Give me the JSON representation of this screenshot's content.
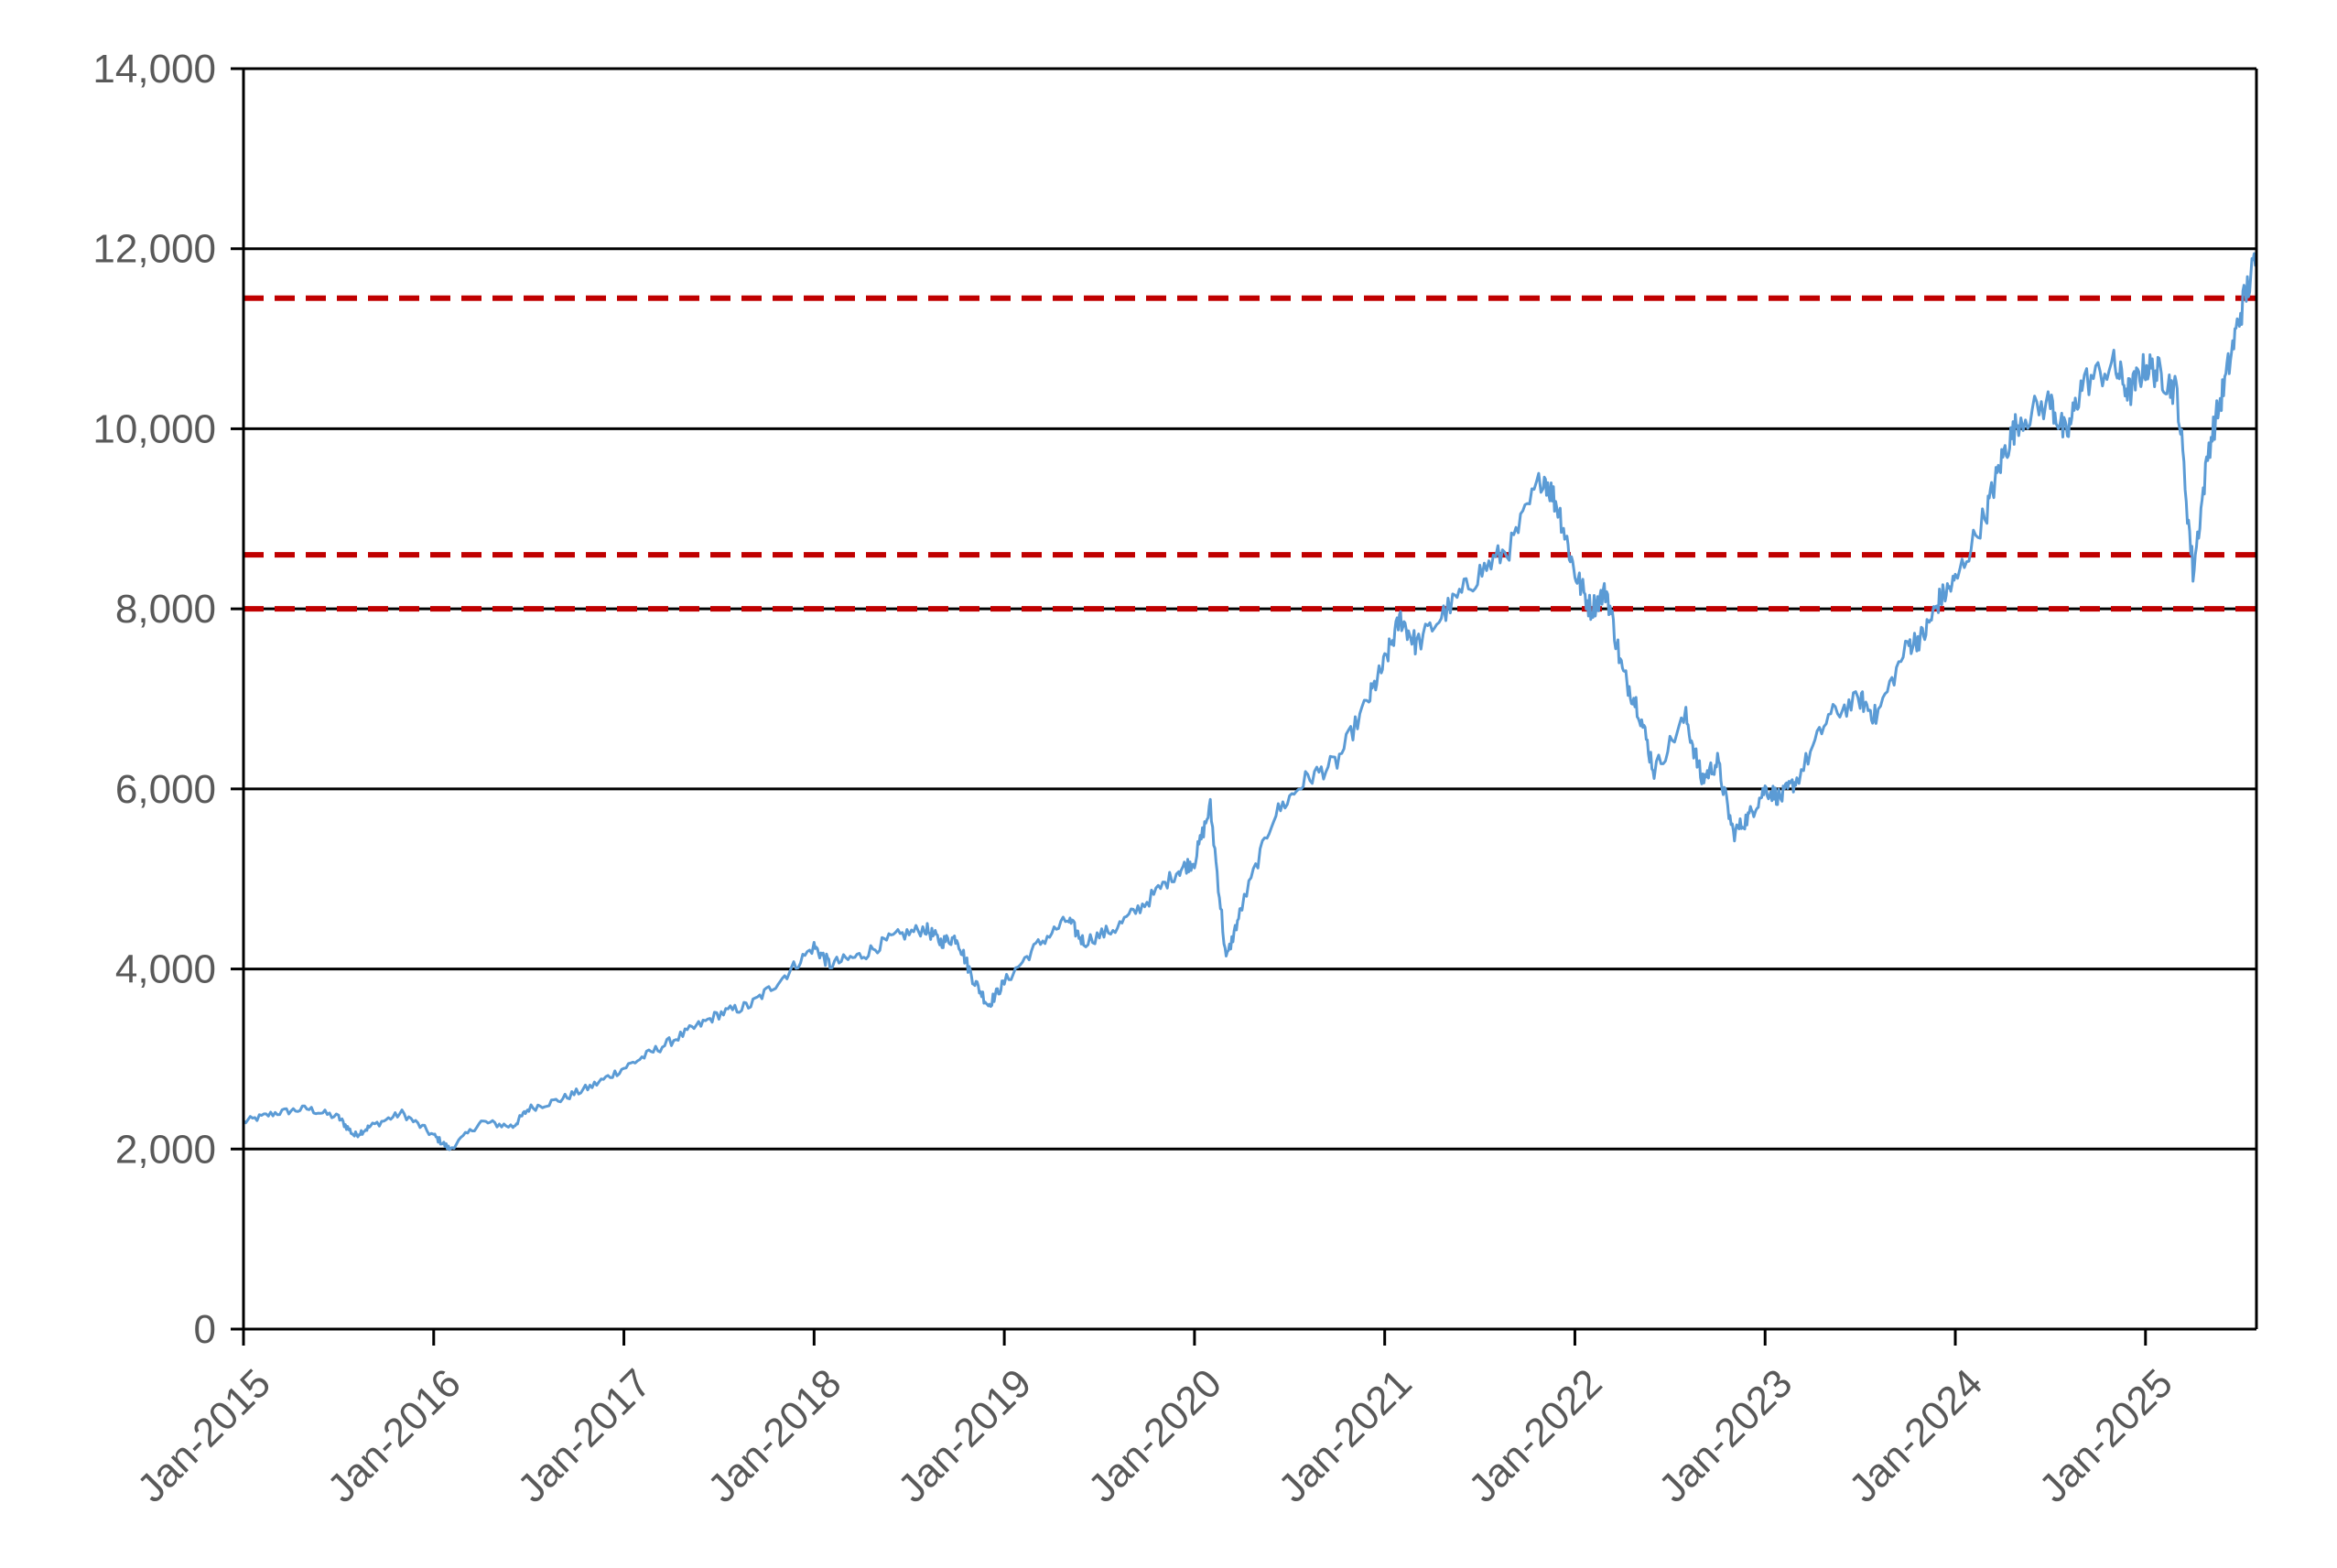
{
  "chart_data": {
    "type": "line",
    "title": "",
    "xlabel": "",
    "ylabel": "",
    "ylim": [
      0,
      14000
    ],
    "xlim": [
      "2015-01",
      "2025-08"
    ],
    "y_ticks": [
      0,
      2000,
      4000,
      6000,
      8000,
      10000,
      12000,
      14000
    ],
    "y_tick_labels": [
      "0",
      "2,000",
      "4,000",
      "6,000",
      "8,000",
      "10,000",
      "12,000",
      "14,000"
    ],
    "x_ticks": [
      "2015-01",
      "2016-01",
      "2017-01",
      "2018-01",
      "2019-01",
      "2020-01",
      "2021-01",
      "2022-01",
      "2023-01",
      "2024-01",
      "2025-01"
    ],
    "x_tick_labels": [
      "Jan-2015",
      "Jan-2016",
      "Jan-2017",
      "Jan-2018",
      "Jan-2019",
      "Jan-2020",
      "Jan-2021",
      "Jan-2022",
      "Jan-2023",
      "Jan-2024",
      "Jan-2025"
    ],
    "grid": "horizontal",
    "legend": "none",
    "series": [
      {
        "color": "#5b9bd5",
        "x": [
          "2015-01",
          "2015-03",
          "2015-05",
          "2015-07",
          "2015-08",
          "2015-09",
          "2015-11",
          "2016-01",
          "2016-02",
          "2016-04",
          "2016-06",
          "2016-07",
          "2016-09",
          "2016-11",
          "2017-01",
          "2017-03",
          "2017-05",
          "2017-07",
          "2017-09",
          "2017-11",
          "2018-01",
          "2018-02",
          "2018-04",
          "2018-06",
          "2018-08",
          "2018-09",
          "2018-10",
          "2018-11",
          "2018-12",
          "2019-01",
          "2019-03",
          "2019-05",
          "2019-06",
          "2019-08",
          "2019-10",
          "2019-12",
          "2020-01",
          "2020-02",
          "2020-03",
          "2020-04",
          "2020-06",
          "2020-08",
          "2020-10",
          "2020-12",
          "2021-01",
          "2021-02",
          "2021-03",
          "2021-05",
          "2021-07",
          "2021-09",
          "2021-11",
          "2021-12",
          "2022-01",
          "2022-02",
          "2022-03",
          "2022-04",
          "2022-05",
          "2022-06",
          "2022-08",
          "2022-09",
          "2022-10",
          "2022-11",
          "2022-12",
          "2023-01",
          "2023-02",
          "2023-03",
          "2023-05",
          "2023-07",
          "2023-08",
          "2023-10",
          "2023-11",
          "2023-12",
          "2024-01",
          "2024-03",
          "2024-04",
          "2024-05",
          "2024-07",
          "2024-08",
          "2024-09",
          "2024-11",
          "2024-12",
          "2025-01",
          "2025-02",
          "2025-03",
          "2025-04",
          "2025-05",
          "2025-06",
          "2025-07",
          "2025-08"
        ],
        "y": [
          2300,
          2400,
          2450,
          2350,
          2150,
          2250,
          2400,
          2150,
          2000,
          2300,
          2250,
          2450,
          2550,
          2700,
          2900,
          3100,
          3300,
          3500,
          3600,
          3900,
          4250,
          4050,
          4150,
          4350,
          4450,
          4300,
          4350,
          3900,
          3600,
          3850,
          4250,
          4550,
          4300,
          4450,
          4750,
          5100,
          5200,
          5800,
          4100,
          4700,
          5700,
          6100,
          6300,
          7000,
          7400,
          7900,
          7600,
          8000,
          8400,
          8700,
          9500,
          9100,
          8400,
          8000,
          8200,
          7300,
          6900,
          6200,
          6800,
          6100,
          6300,
          5500,
          5700,
          6000,
          5900,
          6100,
          6800,
          7000,
          6800,
          7600,
          7700,
          8100,
          8300,
          9100,
          9700,
          10100,
          10300,
          9900,
          10500,
          10700,
          10400,
          10700,
          10600,
          10400,
          8400,
          9800,
          10500,
          11300,
          11900
        ]
      }
    ],
    "reference_lines": [
      {
        "y": 11450,
        "color": "#c00000",
        "style": "dashed"
      },
      {
        "y": 8600,
        "color": "#c00000",
        "style": "dashed"
      },
      {
        "y": 8000,
        "color": "#c00000",
        "style": "dashed"
      }
    ]
  }
}
